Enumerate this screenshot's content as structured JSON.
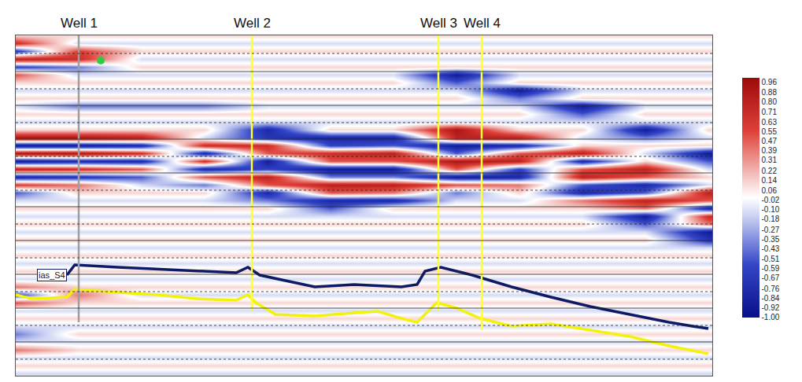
{
  "chart_data": {
    "type": "heatmap",
    "tick_labels": false,
    "grid": true,
    "xlim": [
      20,
      905
    ],
    "ylim": [
      478,
      45
    ],
    "yticks": [
      68,
      91,
      113,
      134,
      156,
      177,
      199,
      220,
      242,
      263,
      285,
      306,
      328,
      349,
      371,
      392,
      414,
      435,
      457
    ],
    "x": [
      20,
      100,
      180,
      260,
      340,
      420,
      500,
      580,
      660,
      740,
      820,
      900
    ],
    "y": [
      45,
      55,
      65,
      75,
      85,
      95,
      105,
      115,
      125,
      135,
      145,
      155,
      165,
      175,
      185,
      195,
      205,
      215,
      225,
      235,
      245,
      255,
      265,
      275,
      285,
      295,
      305,
      315,
      325,
      335,
      345,
      355,
      365,
      375,
      385,
      395,
      405,
      415,
      425,
      435,
      445,
      455,
      465,
      475
    ],
    "z": [
      [
        0.12,
        0.12,
        0.12,
        0.12,
        0.12,
        0.12,
        0.12,
        0.12,
        0.12,
        0.12,
        0.12,
        0.12
      ],
      [
        0.7,
        -0.12,
        -0.12,
        -0.12,
        -0.12,
        -0.12,
        -0.12,
        -0.12,
        -0.12,
        -0.12,
        -0.12,
        -0.12
      ],
      [
        -0.7,
        0.6,
        0.12,
        0.12,
        0.12,
        0.12,
        0.12,
        0.12,
        0.12,
        0.12,
        0.12,
        0.12
      ],
      [
        0.8,
        0.7,
        -0.12,
        -0.12,
        -0.12,
        -0.12,
        -0.12,
        -0.12,
        -0.12,
        -0.12,
        -0.12,
        -0.12
      ],
      [
        -0.6,
        -0.4,
        0.12,
        0.12,
        0.12,
        0.12,
        0.12,
        0.12,
        0.12,
        0.12,
        0.12,
        0.12
      ],
      [
        0.5,
        -0.12,
        -0.12,
        -0.12,
        -0.12,
        -0.12,
        -0.12,
        -0.9,
        -0.12,
        -0.12,
        -0.12,
        -0.12
      ],
      [
        0.12,
        0.12,
        0.12,
        0.12,
        0.12,
        0.12,
        0.12,
        -0.5,
        0.12,
        0.12,
        0.12,
        0.12
      ],
      [
        -0.12,
        -0.12,
        -0.12,
        -0.12,
        -0.12,
        -0.12,
        -0.12,
        -0.12,
        -0.9,
        -0.12,
        -0.12,
        -0.12
      ],
      [
        0.12,
        0.12,
        0.12,
        0.12,
        0.12,
        0.12,
        0.12,
        0.12,
        -0.4,
        0.12,
        0.12,
        0.12
      ],
      [
        -0.12,
        -0.4,
        -0.4,
        -0.4,
        -0.12,
        -0.12,
        -0.12,
        -0.12,
        -0.12,
        -0.9,
        -0.12,
        -0.12
      ],
      [
        0.12,
        0.12,
        0.12,
        0.12,
        0.12,
        0.12,
        0.12,
        0.12,
        0.12,
        -0.5,
        0.12,
        0.12
      ],
      [
        -0.12,
        -0.12,
        -0.12,
        -0.12,
        -0.12,
        -0.12,
        -0.12,
        -0.12,
        -0.12,
        -0.12,
        -0.12,
        -0.12
      ],
      [
        0.12,
        0.12,
        0.12,
        0.12,
        -0.8,
        0.12,
        0.12,
        0.9,
        0.12,
        0.12,
        -0.9,
        0.12
      ],
      [
        0.9,
        0.9,
        0.8,
        -0.12,
        -0.7,
        -0.8,
        -0.8,
        0.8,
        0.8,
        -0.12,
        -0.4,
        -0.12
      ],
      [
        -0.9,
        -0.9,
        -0.8,
        0.7,
        0.7,
        -0.6,
        -0.5,
        -0.9,
        -0.8,
        0.12,
        0.12,
        0.12
      ],
      [
        0.9,
        0.9,
        0.7,
        -0.8,
        0.5,
        0.7,
        0.8,
        -0.5,
        0.5,
        0.8,
        -0.12,
        -0.9
      ],
      [
        -0.9,
        -0.8,
        -0.8,
        0.7,
        -0.9,
        0.5,
        0.5,
        0.9,
        0.8,
        -0.8,
        0.12,
        -0.5
      ],
      [
        0.8,
        0.7,
        0.5,
        -0.8,
        -0.6,
        -0.9,
        -0.9,
        0.5,
        -0.6,
        0.5,
        0.8,
        -0.12
      ],
      [
        -0.8,
        -0.7,
        -0.5,
        0.5,
        0.8,
        -0.4,
        -0.4,
        -0.9,
        -0.8,
        0.8,
        0.5,
        0.12
      ],
      [
        0.6,
        0.4,
        -0.12,
        -0.4,
        0.5,
        0.8,
        0.8,
        0.5,
        0.4,
        -0.5,
        -0.8,
        -0.12
      ],
      [
        -0.5,
        0.12,
        0.12,
        0.12,
        -0.8,
        0.5,
        0.4,
        -0.4,
        0.12,
        -0.8,
        -0.5,
        0.8
      ],
      [
        -0.12,
        -0.12,
        -0.12,
        -0.12,
        -0.4,
        -0.8,
        -0.8,
        -0.12,
        -0.12,
        0.4,
        0.8,
        0.5
      ],
      [
        0.12,
        0.12,
        0.12,
        0.12,
        0.12,
        -0.5,
        0.12,
        0.12,
        0.12,
        0.12,
        0.4,
        -0.8
      ],
      [
        -0.12,
        -0.12,
        -0.12,
        -0.12,
        -0.12,
        -0.12,
        -0.12,
        -0.12,
        -0.12,
        -0.12,
        -0.9,
        0.7
      ],
      [
        0.12,
        0.12,
        0.12,
        0.12,
        0.12,
        0.12,
        0.12,
        0.12,
        0.12,
        0.12,
        -0.5,
        0.4
      ],
      [
        -0.12,
        -0.12,
        -0.12,
        -0.12,
        -0.12,
        -0.12,
        -0.12,
        -0.12,
        -0.12,
        -0.12,
        -0.12,
        -0.9
      ],
      [
        0.12,
        0.12,
        0.12,
        0.12,
        0.12,
        0.12,
        0.12,
        0.12,
        0.12,
        0.12,
        0.12,
        -0.7
      ],
      [
        -0.12,
        -0.12,
        -0.12,
        -0.12,
        -0.12,
        -0.12,
        -0.12,
        -0.12,
        -0.12,
        -0.12,
        -0.12,
        -0.12
      ],
      [
        0.12,
        0.12,
        0.12,
        0.12,
        0.12,
        0.12,
        0.12,
        0.12,
        0.12,
        0.12,
        0.12,
        0.12
      ],
      [
        -0.12,
        -0.12,
        -0.12,
        -0.12,
        -0.12,
        -0.12,
        -0.12,
        -0.12,
        -0.12,
        -0.12,
        -0.12,
        -0.12
      ],
      [
        0.12,
        0.12,
        0.12,
        0.12,
        0.12,
        0.12,
        0.12,
        0.12,
        0.12,
        0.12,
        0.12,
        0.12
      ],
      [
        -0.12,
        -0.12,
        -0.12,
        -0.12,
        -0.12,
        -0.12,
        -0.12,
        -0.12,
        -0.12,
        -0.12,
        -0.12,
        -0.12
      ],
      [
        0.4,
        0.12,
        0.12,
        0.12,
        0.12,
        0.12,
        0.12,
        0.12,
        0.12,
        0.12,
        0.12,
        0.12
      ],
      [
        -0.6,
        0.4,
        -0.12,
        -0.12,
        -0.12,
        -0.12,
        -0.12,
        -0.12,
        -0.12,
        -0.12,
        -0.12,
        -0.12
      ],
      [
        0.5,
        0.12,
        0.12,
        0.12,
        0.12,
        0.12,
        0.12,
        0.12,
        0.12,
        0.12,
        0.12,
        0.12
      ],
      [
        -0.12,
        -0.12,
        -0.12,
        -0.12,
        -0.12,
        -0.12,
        -0.12,
        -0.12,
        -0.12,
        -0.12,
        -0.12,
        -0.12
      ],
      [
        0.12,
        0.12,
        0.12,
        0.12,
        0.12,
        0.12,
        0.12,
        0.12,
        0.12,
        0.12,
        0.12,
        0.12
      ],
      [
        -0.12,
        -0.12,
        -0.12,
        -0.12,
        -0.12,
        -0.12,
        -0.12,
        -0.12,
        -0.12,
        -0.12,
        -0.12,
        -0.12
      ],
      [
        -0.4,
        0.12,
        0.12,
        0.12,
        0.12,
        0.12,
        0.12,
        0.12,
        0.12,
        0.12,
        0.12,
        0.12
      ],
      [
        -0.12,
        -0.12,
        -0.12,
        -0.12,
        -0.12,
        -0.12,
        -0.12,
        -0.12,
        -0.12,
        -0.12,
        -0.12,
        -0.12
      ],
      [
        0.4,
        0.12,
        0.12,
        0.12,
        0.12,
        0.12,
        0.12,
        0.12,
        0.12,
        0.12,
        0.12,
        0.12
      ],
      [
        -0.12,
        -0.12,
        -0.12,
        -0.12,
        -0.12,
        -0.12,
        -0.12,
        -0.12,
        -0.12,
        -0.12,
        -0.12,
        -0.12
      ],
      [
        0.12,
        0.12,
        0.12,
        0.12,
        0.12,
        0.12,
        0.12,
        0.12,
        0.12,
        0.12,
        0.12,
        0.12
      ],
      [
        -0.12,
        -0.12,
        -0.12,
        -0.12,
        -0.12,
        -0.12,
        -0.12,
        -0.12,
        -0.12,
        -0.12,
        -0.12,
        -0.12
      ]
    ],
    "colorbar": {
      "range": [
        -1,
        1
      ],
      "ticks": [
        0.96,
        0.88,
        {
          "value": 0.8,
          "label": "0.80"
        },
        0.71,
        0.63,
        0.55,
        0.47,
        0.39,
        0.31,
        0.22,
        0.14,
        0.06,
        -0.02,
        {
          "value": -0.1,
          "label": "-0.10"
        },
        -0.18,
        -0.27,
        -0.35,
        -0.43,
        -0.51,
        -0.59,
        -0.67,
        -0.76,
        -0.84,
        -0.92,
        {
          "value": -1,
          "label": "-1.00"
        }
      ]
    },
    "wells": [
      {
        "name": "Well 1",
        "x": 100,
        "bottom": 410,
        "color": "#9e9e9e"
      },
      {
        "name": "Well 2",
        "x": 320,
        "bottom": 395,
        "color": "#ffff33"
      },
      {
        "name": "Well 3",
        "x": 557,
        "bottom": 395,
        "color": "#ffff33"
      },
      {
        "name": "Well 4",
        "x": 612,
        "bottom": 420,
        "color": "#ffff33"
      }
    ],
    "horizons": [
      {
        "name": "ias_S4",
        "color": "#0d1a66",
        "x": [
          85,
          95,
          150,
          250,
          300,
          315,
          330,
          400,
          450,
          510,
          530,
          540,
          560,
          600,
          650,
          700,
          750,
          800,
          850,
          880,
          900
        ],
        "y": [
          350,
          337,
          340,
          345,
          347,
          340,
          350,
          365,
          362,
          365,
          362,
          345,
          340,
          350,
          365,
          378,
          390,
          400,
          410,
          415,
          418
        ]
      },
      {
        "color": "#f2f20a",
        "x": [
          20,
          40,
          85,
          95,
          150,
          200,
          250,
          300,
          315,
          325,
          350,
          400,
          450,
          480,
          510,
          530,
          545,
          555,
          580,
          610,
          650,
          700,
          750,
          800,
          850,
          900
        ],
        "y": [
          375,
          380,
          378,
          368,
          372,
          375,
          380,
          382,
          375,
          385,
          400,
          402,
          398,
          396,
          405,
          410,
          395,
          385,
          392,
          405,
          415,
          412,
          420,
          428,
          440,
          450
        ]
      }
    ],
    "points": [
      {
        "x": 128,
        "y": 77,
        "color": "#2ecc40",
        "marker": "circle"
      }
    ]
  }
}
